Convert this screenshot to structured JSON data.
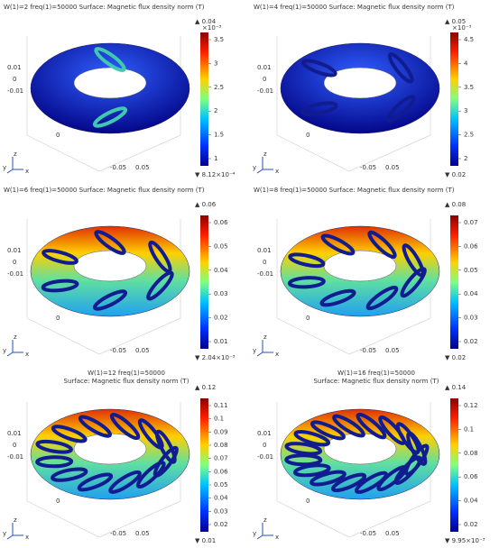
{
  "panels": [
    {
      "title_lines": [
        "W(1)=2 freq(1)=50000   Surface: Magnetic flux density norm (T)"
      ],
      "max_label": "▲ 0.04",
      "exponent": "×10⁻³",
      "ticks": [
        "3.5",
        "3",
        "2.5",
        "2",
        "1.5",
        "1"
      ],
      "min_label": "▼ 8.12×10⁻⁴",
      "axis_labels": [
        "0.01",
        "0",
        "-0.01",
        "0",
        "-0.05",
        "0.05"
      ]
    },
    {
      "title_lines": [
        "W(1)=4 freq(1)=50000   Surface: Magnetic flux density norm (T)"
      ],
      "max_label": "▲ 0.05",
      "exponent": "×10⁻³",
      "ticks": [
        "4.5",
        "4",
        "3.5",
        "3",
        "2.5",
        "2"
      ],
      "min_label": "▼ 0.02",
      "axis_labels": [
        "0.01",
        "0",
        "-0.01",
        "0",
        "-0.05",
        "0.05"
      ]
    },
    {
      "title_lines": [
        "W(1)=6 freq(1)=50000   Surface: Magnetic flux density norm (T)"
      ],
      "max_label": "▲ 0.06",
      "ticks": [
        "0.06",
        "0.05",
        "0.04",
        "0.03",
        "0.02",
        "0.01"
      ],
      "min_label": "▼ 2.04×10⁻³",
      "axis_labels": [
        "0.01",
        "0",
        "-0.01",
        "0",
        "-0.05",
        "0.05"
      ]
    },
    {
      "title_lines": [
        "W(1)=8 freq(1)=50000   Surface: Magnetic flux density norm (T)"
      ],
      "max_label": "▲ 0.08",
      "ticks": [
        "0.07",
        "0.06",
        "0.05",
        "0.04",
        "0.03",
        "0.02"
      ],
      "min_label": "▼ 0.02",
      "axis_labels": [
        "0.01",
        "0",
        "-0.01",
        "0",
        "-0.05",
        "0.05"
      ]
    },
    {
      "title_lines": [
        "W(1)=12 freq(1)=50000",
        "Surface: Magnetic flux density norm (T)"
      ],
      "max_label": "▲ 0.12",
      "ticks": [
        "0.11",
        "0.1",
        "0.09",
        "0.08",
        "0.07",
        "0.06",
        "0.05",
        "0.04",
        "0.03",
        "0.02"
      ],
      "min_label": "▼ 0.01",
      "axis_labels": [
        "0.01",
        "0",
        "-0.01",
        "0",
        "-0.05",
        "0.05"
      ]
    },
    {
      "title_lines": [
        "W(1)=16 freq(1)=50000",
        "Surface: Magnetic flux density norm (T)"
      ],
      "max_label": "▲ 0.14",
      "ticks": [
        "0.12",
        "0.1",
        "0.08",
        "0.06",
        "0.04",
        "0.02"
      ],
      "min_label": "▼ 9.95×10⁻³",
      "axis_labels": [
        "0.01",
        "0",
        "-0.01",
        "0",
        "-0.05",
        "0.05"
      ]
    }
  ],
  "triad": [
    "z",
    "y",
    "x"
  ]
}
